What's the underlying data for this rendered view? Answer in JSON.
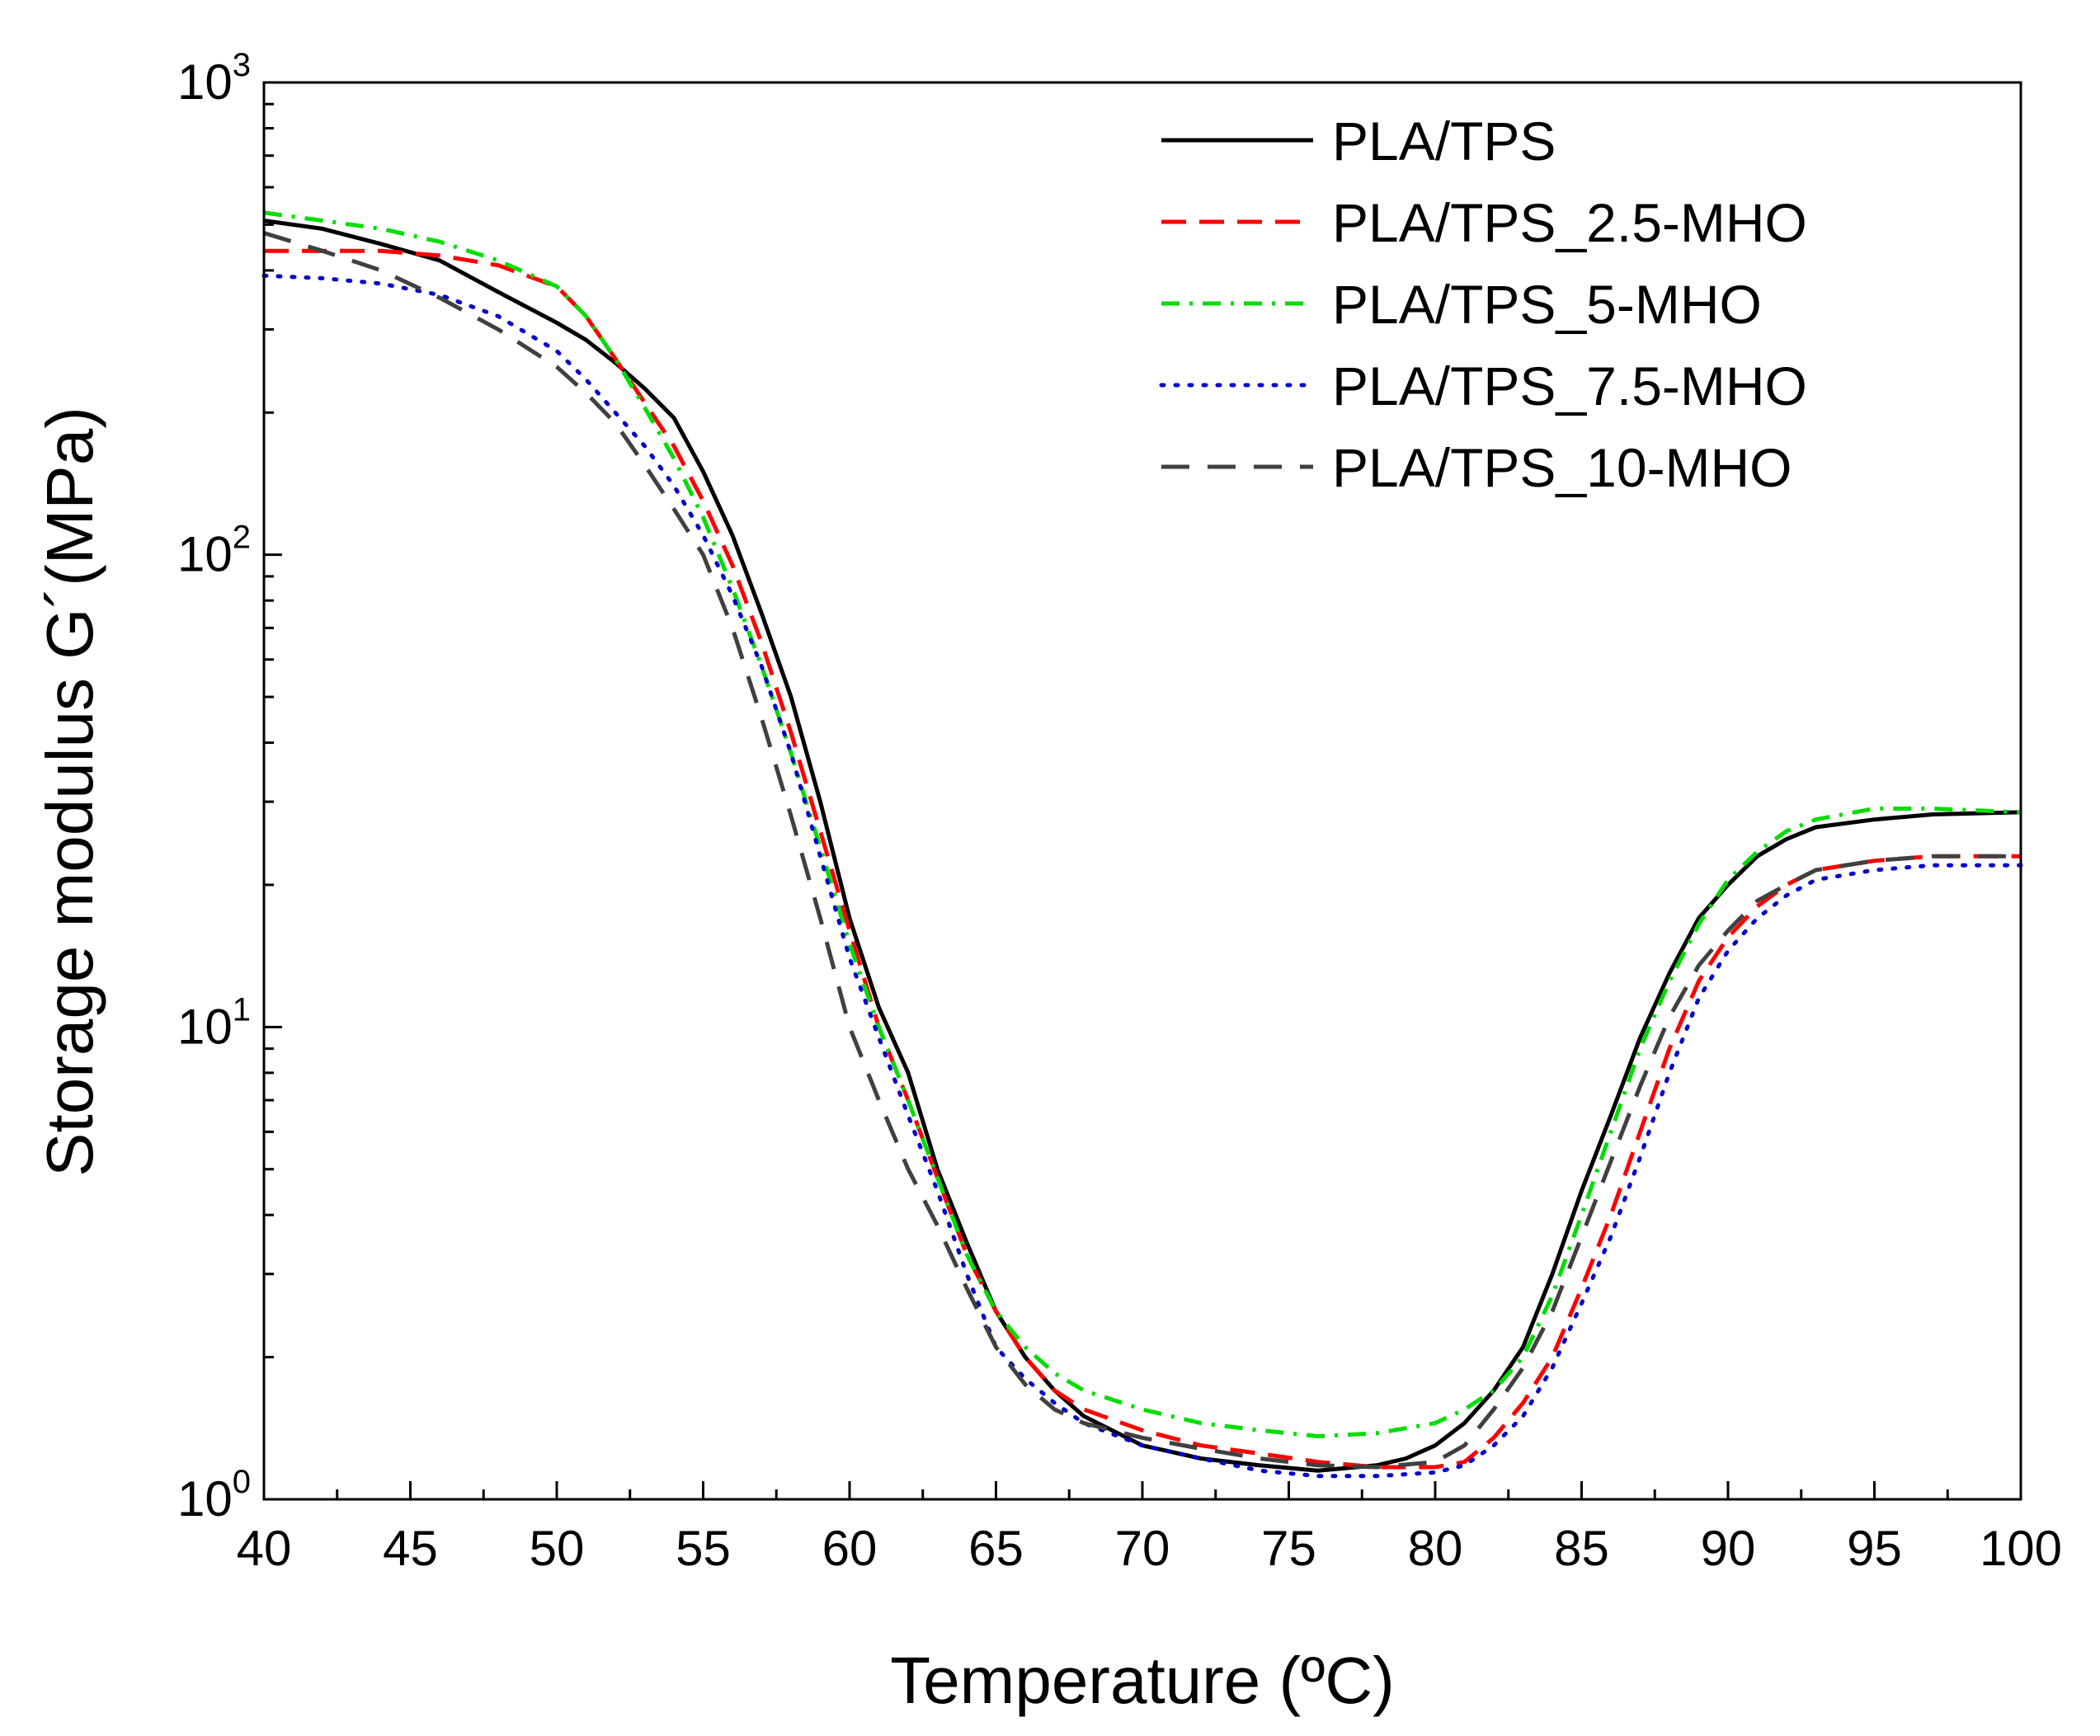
{
  "chart_data": {
    "type": "line",
    "title": "",
    "xlabel": "Temperature (ºC)",
    "ylabel": "Storage modulus G´(MPa)",
    "xlim": [
      40,
      100
    ],
    "ylim": [
      1,
      1000
    ],
    "yscale": "log",
    "grid": false,
    "legend_position": "top-right",
    "x_ticks": [
      "40",
      "45",
      "50",
      "55",
      "60",
      "65",
      "70",
      "75",
      "80",
      "85",
      "90",
      "95",
      "100"
    ],
    "y_ticks": [
      {
        "base": "10",
        "exp": "0"
      },
      {
        "base": "10",
        "exp": "1"
      },
      {
        "base": "10",
        "exp": "2"
      },
      {
        "base": "10",
        "exp": "3"
      }
    ],
    "series": [
      {
        "name": "PLA/TPS",
        "color": "#000000",
        "dash": "solid",
        "points": [
          [
            40,
            510
          ],
          [
            42,
            490
          ],
          [
            44,
            455
          ],
          [
            46,
            420
          ],
          [
            48,
            360
          ],
          [
            50,
            310
          ],
          [
            51,
            285
          ],
          [
            52,
            255
          ],
          [
            53,
            225
          ],
          [
            54,
            195
          ],
          [
            55,
            150
          ],
          [
            56,
            110
          ],
          [
            57,
            75
          ],
          [
            58,
            50
          ],
          [
            59,
            30
          ],
          [
            60,
            17
          ],
          [
            61,
            11
          ],
          [
            62,
            8
          ],
          [
            63,
            5
          ],
          [
            64,
            3.5
          ],
          [
            65,
            2.5
          ],
          [
            66,
            2.0
          ],
          [
            67,
            1.7
          ],
          [
            68,
            1.5
          ],
          [
            70,
            1.3
          ],
          [
            72,
            1.22
          ],
          [
            74,
            1.18
          ],
          [
            76,
            1.15
          ],
          [
            78,
            1.18
          ],
          [
            79,
            1.22
          ],
          [
            80,
            1.3
          ],
          [
            81,
            1.45
          ],
          [
            82,
            1.7
          ],
          [
            83,
            2.1
          ],
          [
            84,
            3.0
          ],
          [
            85,
            4.5
          ],
          [
            86,
            6.5
          ],
          [
            87,
            9.5
          ],
          [
            88,
            13
          ],
          [
            89,
            17
          ],
          [
            90,
            20
          ],
          [
            91,
            23
          ],
          [
            92,
            25
          ],
          [
            93,
            26.5
          ],
          [
            95,
            27.5
          ],
          [
            97,
            28.2
          ],
          [
            100,
            28.5
          ]
        ]
      },
      {
        "name": "PLA/TPS_2.5-MHO",
        "color": "#ff0000",
        "dash": "dashed",
        "points": [
          [
            40,
            440
          ],
          [
            42,
            440
          ],
          [
            44,
            440
          ],
          [
            46,
            430
          ],
          [
            48,
            410
          ],
          [
            50,
            370
          ],
          [
            51,
            320
          ],
          [
            52,
            260
          ],
          [
            53,
            210
          ],
          [
            54,
            170
          ],
          [
            55,
            130
          ],
          [
            56,
            95
          ],
          [
            57,
            65
          ],
          [
            58,
            42
          ],
          [
            59,
            26
          ],
          [
            60,
            16
          ],
          [
            61,
            10
          ],
          [
            62,
            7
          ],
          [
            63,
            4.8
          ],
          [
            64,
            3.3
          ],
          [
            65,
            2.5
          ],
          [
            66,
            2.0
          ],
          [
            67,
            1.7
          ],
          [
            68,
            1.55
          ],
          [
            70,
            1.4
          ],
          [
            72,
            1.3
          ],
          [
            74,
            1.25
          ],
          [
            76,
            1.2
          ],
          [
            78,
            1.17
          ],
          [
            80,
            1.17
          ],
          [
            81,
            1.2
          ],
          [
            82,
            1.35
          ],
          [
            83,
            1.6
          ],
          [
            84,
            2.0
          ],
          [
            85,
            2.8
          ],
          [
            86,
            4.0
          ],
          [
            87,
            6.0
          ],
          [
            88,
            9.0
          ],
          [
            89,
            12.5
          ],
          [
            90,
            15.5
          ],
          [
            91,
            18
          ],
          [
            92,
            20
          ],
          [
            93,
            21.5
          ],
          [
            95,
            22.5
          ],
          [
            97,
            23
          ],
          [
            100,
            23
          ]
        ]
      },
      {
        "name": "PLA/TPS_5-MHO",
        "color": "#00dd00",
        "dash": "dashdot",
        "points": [
          [
            40,
            530
          ],
          [
            42,
            510
          ],
          [
            44,
            490
          ],
          [
            46,
            460
          ],
          [
            48,
            420
          ],
          [
            50,
            370
          ],
          [
            51,
            320
          ],
          [
            52,
            260
          ],
          [
            53,
            205
          ],
          [
            54,
            160
          ],
          [
            55,
            120
          ],
          [
            56,
            85
          ],
          [
            57,
            58
          ],
          [
            58,
            38
          ],
          [
            59,
            24
          ],
          [
            60,
            15
          ],
          [
            61,
            10
          ],
          [
            62,
            7
          ],
          [
            63,
            4.8
          ],
          [
            64,
            3.3
          ],
          [
            65,
            2.5
          ],
          [
            66,
            2.1
          ],
          [
            67,
            1.85
          ],
          [
            68,
            1.7
          ],
          [
            70,
            1.55
          ],
          [
            72,
            1.45
          ],
          [
            74,
            1.4
          ],
          [
            76,
            1.36
          ],
          [
            78,
            1.38
          ],
          [
            80,
            1.45
          ],
          [
            81,
            1.55
          ],
          [
            82,
            1.7
          ],
          [
            83,
            2.0
          ],
          [
            84,
            2.7
          ],
          [
            85,
            4.0
          ],
          [
            86,
            6.0
          ],
          [
            87,
            9.0
          ],
          [
            88,
            12.5
          ],
          [
            89,
            16.5
          ],
          [
            90,
            20.5
          ],
          [
            91,
            23.5
          ],
          [
            92,
            26
          ],
          [
            93,
            27.5
          ],
          [
            95,
            29
          ],
          [
            97,
            29
          ],
          [
            100,
            28.5
          ]
        ]
      },
      {
        "name": "PLA/TPS_7.5-MHO",
        "color": "#0000cc",
        "dash": "dotted",
        "points": [
          [
            40,
            390
          ],
          [
            42,
            385
          ],
          [
            44,
            375
          ],
          [
            46,
            355
          ],
          [
            48,
            320
          ],
          [
            50,
            270
          ],
          [
            51,
            235
          ],
          [
            52,
            200
          ],
          [
            53,
            170
          ],
          [
            54,
            140
          ],
          [
            55,
            110
          ],
          [
            56,
            82
          ],
          [
            57,
            58
          ],
          [
            58,
            38
          ],
          [
            59,
            23
          ],
          [
            60,
            14
          ],
          [
            61,
            9.5
          ],
          [
            62,
            6.5
          ],
          [
            63,
            4.5
          ],
          [
            64,
            3.0
          ],
          [
            65,
            2.1
          ],
          [
            66,
            1.8
          ],
          [
            67,
            1.6
          ],
          [
            68,
            1.45
          ],
          [
            70,
            1.3
          ],
          [
            72,
            1.22
          ],
          [
            74,
            1.15
          ],
          [
            76,
            1.12
          ],
          [
            78,
            1.12
          ],
          [
            80,
            1.14
          ],
          [
            81,
            1.18
          ],
          [
            82,
            1.3
          ],
          [
            83,
            1.5
          ],
          [
            84,
            1.9
          ],
          [
            85,
            2.6
          ],
          [
            86,
            3.6
          ],
          [
            87,
            5.3
          ],
          [
            88,
            8.0
          ],
          [
            89,
            11.5
          ],
          [
            90,
            14.5
          ],
          [
            91,
            17
          ],
          [
            92,
            19
          ],
          [
            93,
            20.5
          ],
          [
            95,
            21.5
          ],
          [
            97,
            22
          ],
          [
            100,
            22
          ]
        ]
      },
      {
        "name": "PLA/TPS_10-MHO",
        "color": "#404040",
        "dash": "longdash",
        "points": [
          [
            40,
            480
          ],
          [
            42,
            440
          ],
          [
            44,
            400
          ],
          [
            46,
            350
          ],
          [
            48,
            300
          ],
          [
            50,
            250
          ],
          [
            51,
            220
          ],
          [
            52,
            190
          ],
          [
            53,
            155
          ],
          [
            54,
            125
          ],
          [
            55,
            100
          ],
          [
            56,
            70
          ],
          [
            57,
            45
          ],
          [
            58,
            28
          ],
          [
            59,
            17
          ],
          [
            60,
            10
          ],
          [
            61,
            7
          ],
          [
            62,
            5
          ],
          [
            63,
            3.8
          ],
          [
            64,
            2.8
          ],
          [
            65,
            2.1
          ],
          [
            66,
            1.75
          ],
          [
            67,
            1.55
          ],
          [
            68,
            1.45
          ],
          [
            70,
            1.35
          ],
          [
            72,
            1.28
          ],
          [
            74,
            1.22
          ],
          [
            76,
            1.18
          ],
          [
            78,
            1.17
          ],
          [
            80,
            1.2
          ],
          [
            81,
            1.3
          ],
          [
            82,
            1.55
          ],
          [
            83,
            1.9
          ],
          [
            84,
            2.5
          ],
          [
            85,
            3.6
          ],
          [
            86,
            5.2
          ],
          [
            87,
            7.5
          ],
          [
            88,
            10.5
          ],
          [
            89,
            13.5
          ],
          [
            90,
            16
          ],
          [
            91,
            18.5
          ],
          [
            92,
            20
          ],
          [
            93,
            21.5
          ],
          [
            95,
            22.5
          ],
          [
            97,
            23
          ],
          [
            100,
            23
          ]
        ]
      }
    ]
  }
}
